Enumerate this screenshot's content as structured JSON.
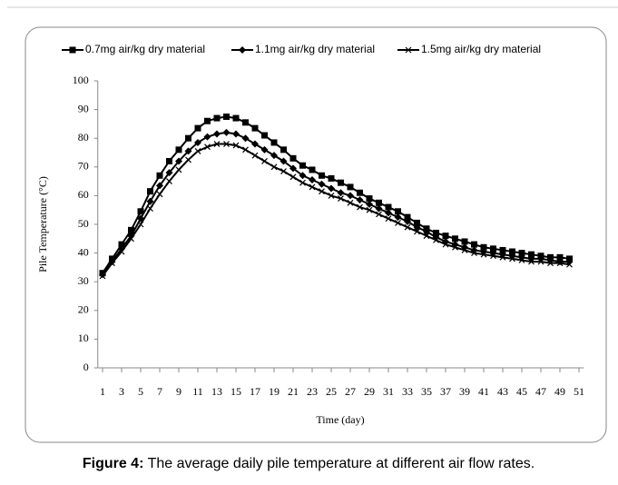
{
  "chart_data": {
    "type": "line",
    "y_label": "Pile Temperature (°C)",
    "x_label": "Time (day)",
    "figure_label": "Figure 4:",
    "caption": "The average daily pile temperature at different air flow rates.",
    "x": [
      1,
      2,
      3,
      4,
      5,
      6,
      7,
      8,
      9,
      10,
      11,
      12,
      13,
      14,
      15,
      16,
      17,
      18,
      19,
      20,
      21,
      22,
      23,
      24,
      25,
      26,
      27,
      28,
      29,
      30,
      31,
      32,
      33,
      34,
      35,
      36,
      37,
      38,
      39,
      40,
      41,
      42,
      43,
      44,
      45,
      46,
      47,
      48,
      49,
      50
    ],
    "xlim": [
      0.5,
      51.5
    ],
    "xticks": [
      1,
      3,
      5,
      7,
      9,
      11,
      13,
      15,
      17,
      19,
      21,
      23,
      25,
      27,
      29,
      31,
      33,
      35,
      37,
      39,
      41,
      43,
      45,
      47,
      49,
      51
    ],
    "ylim": [
      0,
      100
    ],
    "yticks": [
      0,
      10,
      20,
      30,
      40,
      50,
      60,
      70,
      80,
      90,
      100
    ],
    "series": [
      {
        "name": "0.7mg air/kg dry material",
        "color": "#000000",
        "marker": "square",
        "values": [
          33,
          38,
          43,
          48,
          54.5,
          61.5,
          67,
          72,
          76,
          80,
          83.5,
          86,
          87,
          87.5,
          87,
          85.5,
          83.5,
          81,
          78.5,
          76,
          73,
          70.5,
          69,
          67,
          66,
          64.5,
          63,
          61,
          59,
          57.5,
          56,
          54.5,
          52.5,
          50.5,
          48.5,
          47,
          46,
          45,
          44,
          43,
          42,
          41.5,
          41,
          40.5,
          40,
          39.5,
          39,
          38.5,
          38.5,
          38
        ]
      },
      {
        "name": "1.1mg air/kg dry material",
        "color": "#000000",
        "marker": "diamond",
        "values": [
          32.5,
          37,
          41.5,
          46,
          52,
          58,
          63.5,
          68,
          72,
          75.5,
          78.5,
          80.5,
          81.5,
          82,
          81.5,
          80,
          78,
          76,
          74,
          72,
          69.5,
          67,
          65.5,
          64,
          62.5,
          61,
          60,
          58.5,
          57,
          55.5,
          54,
          52.5,
          51,
          49,
          47.5,
          45.5,
          44,
          43,
          42,
          41,
          40.5,
          40,
          39.5,
          39,
          38.5,
          38,
          38,
          37.5,
          37,
          37
        ]
      },
      {
        "name": "1.5mg air/kg dry material",
        "color": "#000000",
        "marker": "cross",
        "values": [
          32,
          36.5,
          40.5,
          45,
          50,
          55.5,
          60.5,
          65,
          69,
          72.5,
          75.5,
          77,
          78,
          78,
          77.5,
          76,
          74,
          72,
          70,
          68.5,
          66.5,
          64.5,
          63,
          61.5,
          60,
          59,
          57.5,
          56,
          55,
          53.5,
          52,
          50.5,
          49,
          47.5,
          46,
          44.5,
          43,
          42,
          41,
          40,
          39.5,
          39,
          38.5,
          38,
          37.5,
          37,
          37,
          36.5,
          36.5,
          36
        ]
      }
    ]
  }
}
